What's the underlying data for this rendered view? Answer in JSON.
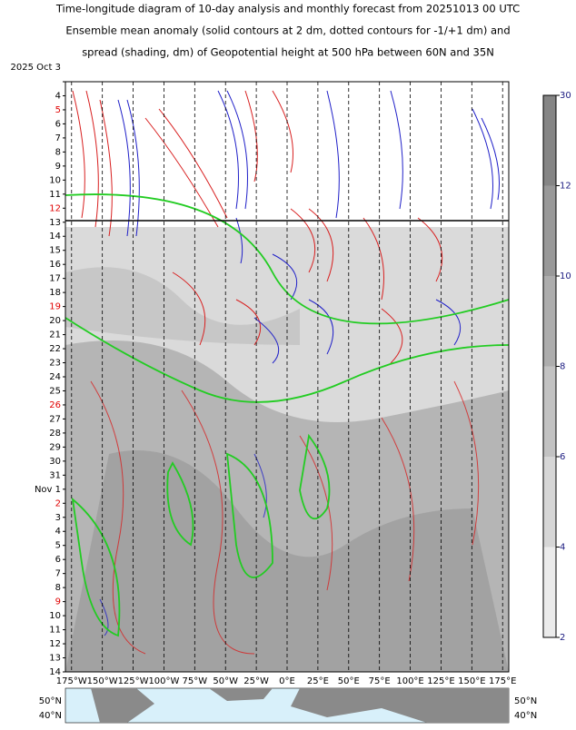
{
  "chart_data": {
    "type": "hovmoller",
    "title": [
      "Time-longitude diagram of 10-day analysis and monthly forecast from 20251013 00 UTC",
      "Ensemble mean anomaly (solid contours at 2 dm, dotted contours for -1/+1 dm) and",
      "spread (shading, dm) of Geopotential height at 500 hPa between 60N and 35N"
    ],
    "categories": [
      "2025 Oct 3",
      "4",
      "5",
      "6",
      "7",
      "8",
      "9",
      "10",
      "11",
      "12",
      "13",
      "14",
      "15",
      "16",
      "17",
      "18",
      "19",
      "20",
      "21",
      "22",
      "23",
      "24",
      "25",
      "26",
      "27",
      "28",
      "29",
      "30",
      "31",
      "Nov 1",
      "2",
      "3",
      "4",
      "5",
      "6",
      "7",
      "8",
      "9",
      "10",
      "11",
      "12",
      "13",
      "14"
    ],
    "highlighted_categories": [
      2,
      9,
      16,
      23,
      30,
      37
    ],
    "highlight_color": "#e00000",
    "label_color": "#000000",
    "xlim": [
      -180,
      180
    ],
    "xticks": [
      {
        "value": -175,
        "label": "175°W"
      },
      {
        "value": -150,
        "label": "150°W"
      },
      {
        "value": -125,
        "label": "125°W"
      },
      {
        "value": -100,
        "label": "100°W"
      },
      {
        "value": -75,
        "label": "75°W"
      },
      {
        "value": -50,
        "label": "50°W"
      },
      {
        "value": -25,
        "label": "25°W"
      },
      {
        "value": 0,
        "label": "0°E"
      },
      {
        "value": 25,
        "label": "25°E"
      },
      {
        "value": 50,
        "label": "50°E"
      },
      {
        "value": 75,
        "label": "75°E"
      },
      {
        "value": 100,
        "label": "100°E"
      },
      {
        "value": 125,
        "label": "125°E"
      },
      {
        "value": 150,
        "label": "150°E"
      },
      {
        "value": 175,
        "label": "175°E"
      }
    ],
    "grid": true,
    "colorbar": {
      "ticks": [
        2,
        4,
        6,
        8,
        10,
        12,
        30
      ],
      "colors": [
        "#ebebeb",
        "#d6d6d6",
        "#c2c2c2",
        "#adadad",
        "#999999",
        "#858585"
      ],
      "label_color": "#1a1a80"
    },
    "map": {
      "lat_labels": [
        "50°N",
        "40°N"
      ]
    }
  }
}
